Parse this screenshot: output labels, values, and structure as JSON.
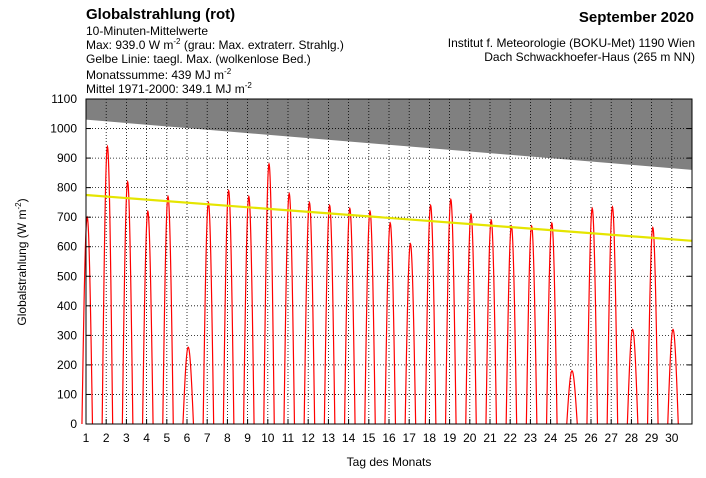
{
  "header": {
    "title": "Globalstrahlung (rot)",
    "line1": "10-Minuten-Mittelwerte",
    "max_prefix": "Max:  939.0 W m",
    "max_exp": "-2",
    "max_suffix": "  (grau: Max. extraterr. Strahlg.)",
    "yellow_prefix": "Gelbe Linie: taegl. Max. (wolkenlose Bed.)",
    "yellow_exp": "",
    "sum_prefix": "Monatssumme:  439 MJ m",
    "sum_exp": "-2",
    "mean_prefix": "Mittel 1971-2000:  349.1 MJ m",
    "mean_exp": "-2",
    "month": "September 2020",
    "institute": "Institut f. Meteorologie (BOKU-Met) 1190 Wien",
    "location": "Dach Schwackhoefer-Haus (265 m NN)"
  },
  "chart_data": {
    "type": "line",
    "xlabel": "Tag des Monats",
    "ylabel": "Globalstrahlung (W m-2)",
    "ylabel_prefix": "Globalstrahlung (W m",
    "ylabel_exp": "-2",
    "ylabel_suffix": ")",
    "xlim": [
      1,
      31
    ],
    "ylim": [
      0,
      1100
    ],
    "x_ticks": [
      1,
      2,
      3,
      4,
      5,
      6,
      7,
      8,
      9,
      10,
      11,
      12,
      13,
      14,
      15,
      16,
      17,
      18,
      19,
      20,
      21,
      22,
      23,
      24,
      25,
      26,
      27,
      28,
      29,
      30
    ],
    "y_ticks": [
      0,
      100,
      200,
      300,
      400,
      500,
      600,
      700,
      800,
      900,
      1000,
      1100
    ],
    "grid": true,
    "colors": {
      "global_radiation": "#ff0000",
      "clear_sky_max": "#e5e500",
      "extraterrestrial_max": "#808080"
    },
    "series": [
      {
        "name": "Globalstrahlung (rot)",
        "type": "daily_peak",
        "color": "#ff0000",
        "days": [
          1,
          2,
          3,
          4,
          5,
          6,
          7,
          8,
          9,
          10,
          11,
          12,
          13,
          14,
          15,
          16,
          17,
          18,
          19,
          20,
          21,
          22,
          23,
          24,
          25,
          26,
          27,
          28,
          29,
          30
        ],
        "daily_max": [
          700,
          939,
          820,
          720,
          770,
          260,
          750,
          790,
          770,
          880,
          780,
          750,
          740,
          730,
          720,
          680,
          610,
          740,
          760,
          710,
          690,
          670,
          670,
          680,
          180,
          730,
          735,
          320,
          665,
          320
        ]
      },
      {
        "name": "Gelbe Linie: taegl. Max. (wolkenlose Bed.)",
        "type": "line",
        "color": "#e5e500",
        "x": [
          1,
          31
        ],
        "y": [
          775,
          620
        ]
      },
      {
        "name": "grau: Max. extraterr. Strahlg.",
        "type": "area",
        "color": "#808080",
        "x": [
          1,
          31
        ],
        "y": [
          1030,
          860
        ]
      }
    ]
  }
}
